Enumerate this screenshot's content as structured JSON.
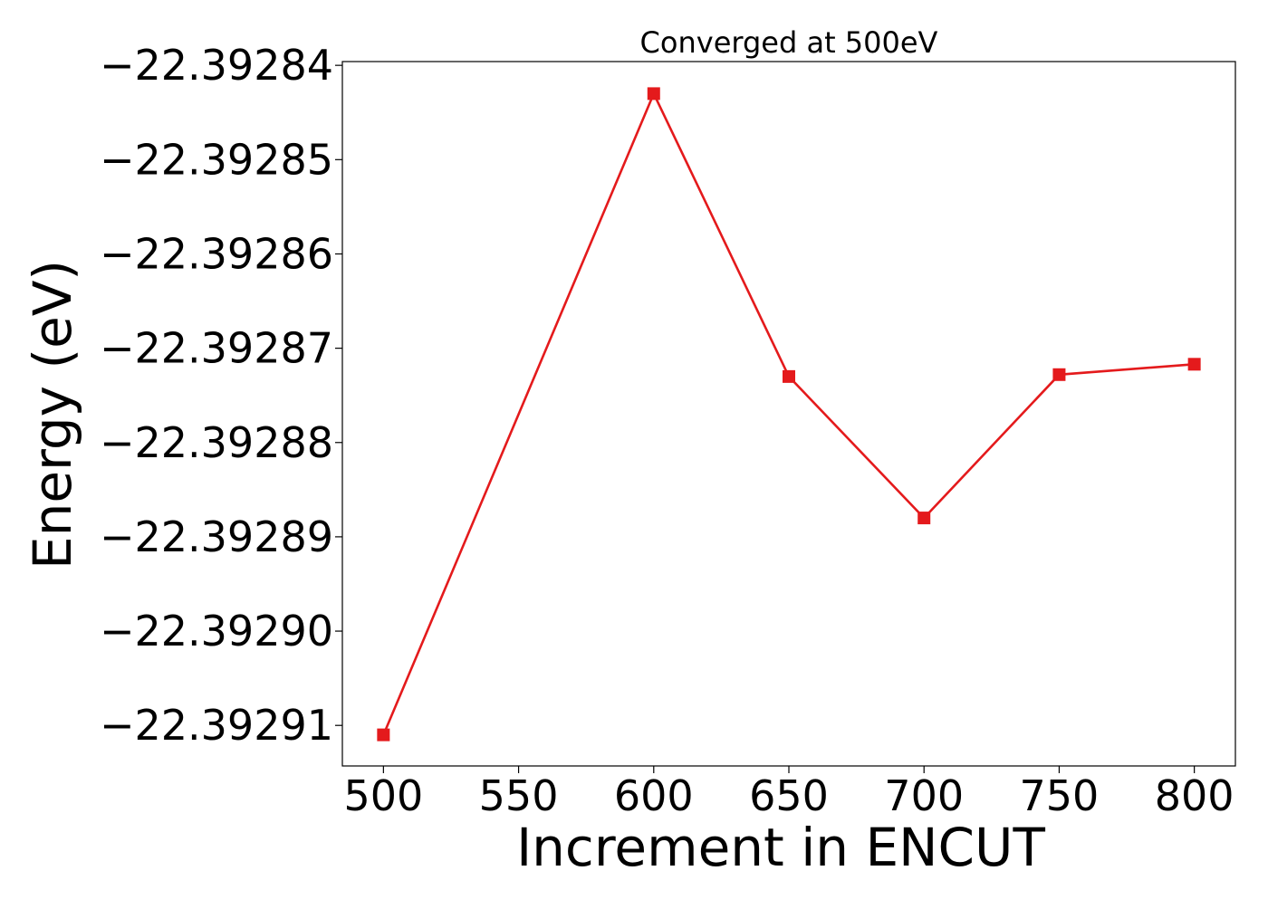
{
  "chart_data": {
    "type": "line",
    "title": "Converged at 500eV",
    "xlabel": "Increment in ENCUT",
    "ylabel": "Energy (eV)",
    "x": [
      500,
      600,
      650,
      700,
      750,
      800
    ],
    "series": [
      {
        "values": [
          -22.392911,
          -22.392843,
          -22.392873,
          -22.392888,
          -22.3928728,
          -22.3928717
        ],
        "color": "#e41a1c",
        "marker": "square"
      }
    ],
    "xticks": [
      500,
      550,
      600,
      650,
      700,
      750,
      800
    ],
    "xtick_labels": [
      "500",
      "550",
      "600",
      "650",
      "700",
      "750",
      "800"
    ],
    "yticks": [
      -22.39284,
      -22.39285,
      -22.39286,
      -22.39287,
      -22.39288,
      -22.39289,
      -22.3929,
      -22.39291
    ],
    "ytick_labels": [
      "−22.39284",
      "−22.39285",
      "−22.39286",
      "−22.39287",
      "−22.39288",
      "−22.39289",
      "−22.39290",
      "−22.39291"
    ],
    "xlim": [
      484.8,
      815.2
    ],
    "ylim": [
      -22.3929143,
      -22.3928396
    ],
    "grid": false,
    "legend": "none"
  }
}
